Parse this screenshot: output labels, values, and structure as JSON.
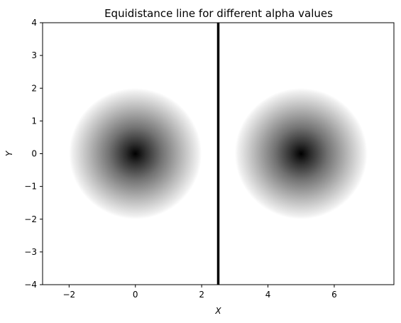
{
  "chart_data": {
    "type": "heatmap",
    "title": "Equidistance line for different alpha values",
    "xlabel": "X",
    "ylabel": "Y",
    "xlim": [
      -2.8,
      7.8
    ],
    "ylim": [
      -4,
      4
    ],
    "x_ticks": [
      -2,
      0,
      2,
      4,
      6
    ],
    "y_ticks": [
      -4,
      -3,
      -2,
      -1,
      0,
      1,
      2,
      3,
      4
    ],
    "x_tick_labels": [
      "−2",
      "0",
      "2",
      "4",
      "6"
    ],
    "y_tick_labels": [
      "−4",
      "−3",
      "−2",
      "−1",
      "0",
      "1",
      "2",
      "3",
      "4"
    ],
    "grid": false,
    "colormap": "gray (dark at center, fading to white)",
    "points": [
      {
        "x": 0,
        "y": 0,
        "radius": 2
      },
      {
        "x": 5,
        "y": 0,
        "radius": 2
      }
    ],
    "equidistance_line": {
      "x": 2.5,
      "color": "#000000"
    }
  }
}
